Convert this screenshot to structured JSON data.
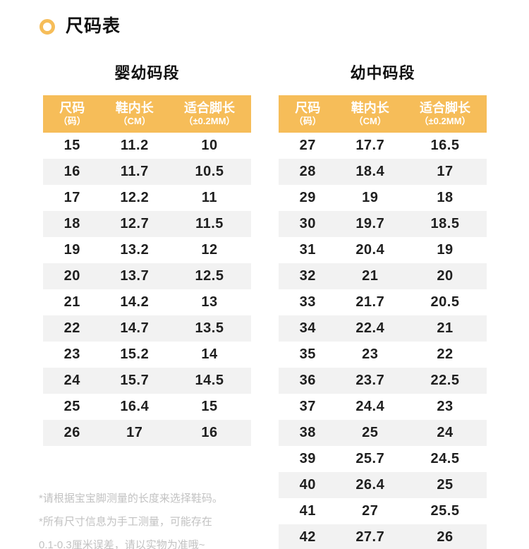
{
  "page_title": {
    "label": "尺码表"
  },
  "colors": {
    "accent": "#F6BD59",
    "stripe": "#F2F2F2",
    "header_text": "#FFFFFF",
    "body_text": "#1F1F1F",
    "note_text": "#C2C2C2"
  },
  "tables": [
    {
      "section_title": "婴幼码段",
      "columns": [
        {
          "main": "尺码",
          "sub": "（码）"
        },
        {
          "main": "鞋内长",
          "sub": "（CM）"
        },
        {
          "main": "适合脚长",
          "sub": "（±0.2MM）"
        }
      ],
      "rows": [
        [
          "15",
          "11.2",
          "10"
        ],
        [
          "16",
          "11.7",
          "10.5"
        ],
        [
          "17",
          "12.2",
          "11"
        ],
        [
          "18",
          "12.7",
          "11.5"
        ],
        [
          "19",
          "13.2",
          "12"
        ],
        [
          "20",
          "13.7",
          "12.5"
        ],
        [
          "21",
          "14.2",
          "13"
        ],
        [
          "22",
          "14.7",
          "13.5"
        ],
        [
          "23",
          "15.2",
          "14"
        ],
        [
          "24",
          "15.7",
          "14.5"
        ],
        [
          "25",
          "16.4",
          "15"
        ],
        [
          "26",
          "17",
          "16"
        ]
      ]
    },
    {
      "section_title": "幼中码段",
      "columns": [
        {
          "main": "尺码",
          "sub": "（码）"
        },
        {
          "main": "鞋内长",
          "sub": "（CM）"
        },
        {
          "main": "适合脚长",
          "sub": "（±0.2MM）"
        }
      ],
      "rows": [
        [
          "27",
          "17.7",
          "16.5"
        ],
        [
          "28",
          "18.4",
          "17"
        ],
        [
          "29",
          "19",
          "18"
        ],
        [
          "30",
          "19.7",
          "18.5"
        ],
        [
          "31",
          "20.4",
          "19"
        ],
        [
          "32",
          "21",
          "20"
        ],
        [
          "33",
          "21.7",
          "20.5"
        ],
        [
          "34",
          "22.4",
          "21"
        ],
        [
          "35",
          "23",
          "22"
        ],
        [
          "36",
          "23.7",
          "22.5"
        ],
        [
          "37",
          "24.4",
          "23"
        ],
        [
          "38",
          "25",
          "24"
        ],
        [
          "39",
          "25.7",
          "24.5"
        ],
        [
          "40",
          "26.4",
          "25"
        ],
        [
          "41",
          "27",
          "25.5"
        ],
        [
          "42",
          "27.7",
          "26"
        ]
      ]
    }
  ],
  "notes": [
    "*请根据宝宝脚测量的长度来选择鞋码。",
    "*所有尺寸信息为手工测量，可能存在",
    "0.1-0.3厘米误差，请以实物为准哦~"
  ]
}
